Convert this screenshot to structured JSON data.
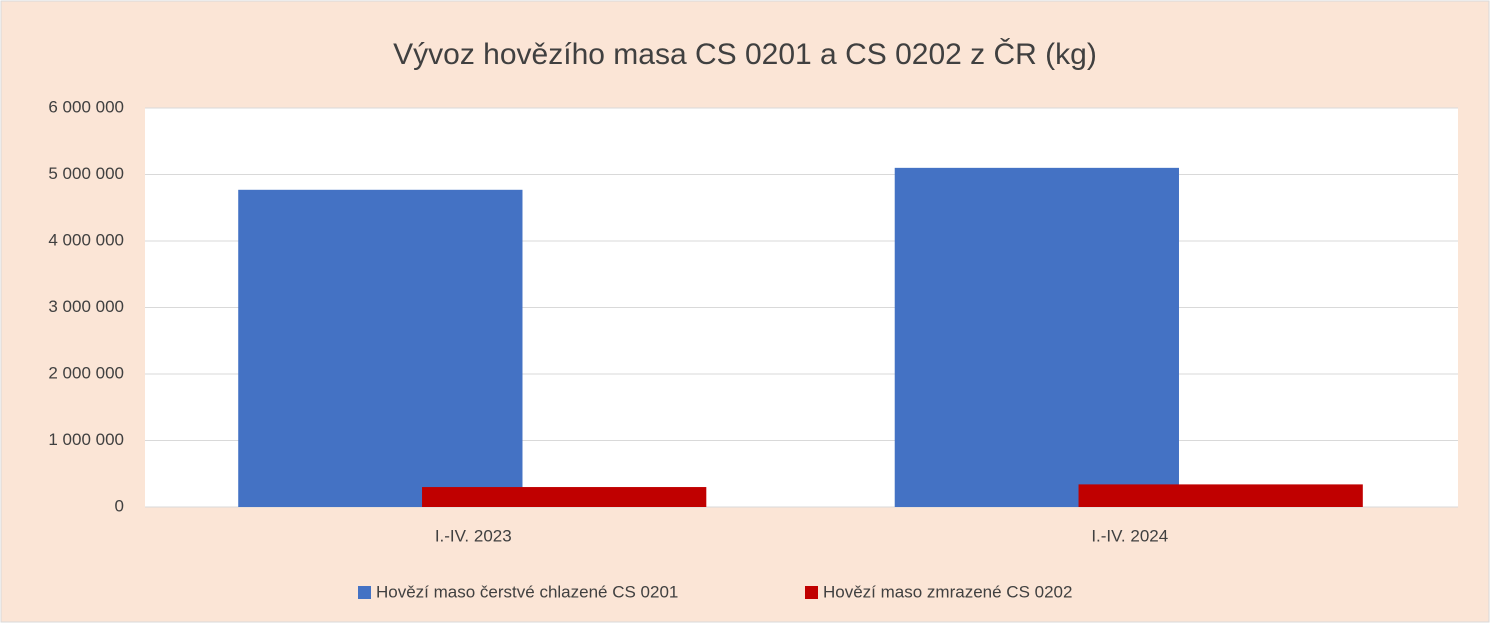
{
  "chart_data": {
    "type": "bar",
    "title": "Vývoz hovězího masa CS 0201 a CS 0202 z ČR (kg)",
    "categories": [
      "I.-IV. 2023",
      "I.-IV. 2024"
    ],
    "series": [
      {
        "name": "Hovězí maso čerstvé chlazené CS 0201",
        "color": "#4472c4",
        "values": [
          4770000,
          5100000
        ]
      },
      {
        "name": "Hovězí maso zmrazené CS 0202",
        "color": "#c00000",
        "values": [
          300000,
          340000
        ]
      }
    ],
    "ylim": [
      0,
      6000000
    ],
    "yticks": [
      0,
      {
        "value": 1000000,
        "label": "1 000 000"
      },
      {
        "value": 2000000,
        "label": "2 000 000"
      },
      {
        "value": 3000000,
        "label": "3 000 000"
      },
      {
        "value": 4000000,
        "label": "4 000 000"
      },
      {
        "value": 5000000,
        "label": "5 000 000"
      },
      {
        "value": 6000000,
        "label": "6 000 000"
      }
    ],
    "grid": true,
    "legend": "bottom"
  }
}
